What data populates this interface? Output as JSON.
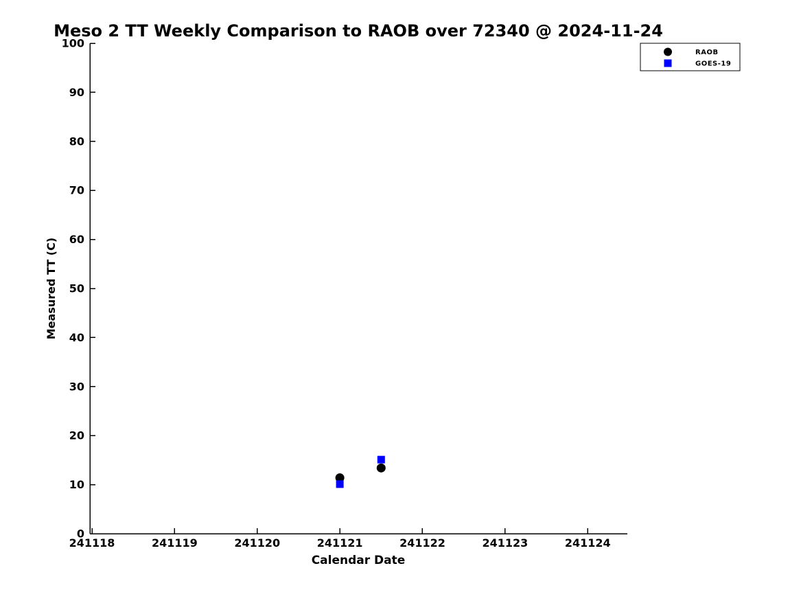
{
  "chart_data": {
    "type": "scatter",
    "title": "Meso 2 TT Weekly Comparison to RAOB over 72340 @ 2024-11-24",
    "xlabel": "Calendar Date",
    "ylabel": "Measured TT (C)",
    "x_tick_labels": [
      "241118",
      "241119",
      "241120",
      "241121",
      "241122",
      "241123",
      "241124"
    ],
    "x_tick_values": [
      241118,
      241119,
      241120,
      241121,
      241122,
      241123,
      241124
    ],
    "y_ticks": [
      0,
      10,
      20,
      30,
      40,
      50,
      60,
      70,
      80,
      90,
      100
    ],
    "xlim": [
      241117.975,
      241124.48
    ],
    "ylim": [
      0,
      100
    ],
    "grid": false,
    "box": false,
    "legend": {
      "position": "top-right",
      "entries": [
        {
          "label": "RAOB",
          "marker": "circle",
          "color": "#000000"
        },
        {
          "label": "GOES-19",
          "marker": "square",
          "color": "#0000ff"
        }
      ]
    },
    "series": [
      {
        "name": "RAOB",
        "marker": "circle",
        "color": "#000000",
        "points": [
          {
            "x": 241121.0,
            "y": 11.4
          },
          {
            "x": 241121.5,
            "y": 13.4
          }
        ]
      },
      {
        "name": "GOES-19",
        "marker": "square",
        "color": "#0000ff",
        "points": [
          {
            "x": 241121.0,
            "y": 10.1
          },
          {
            "x": 241121.5,
            "y": 15.1
          }
        ]
      }
    ]
  },
  "colors": {
    "background": "#ffffff",
    "axis": "#000000",
    "text": "#000000",
    "raob": "#000000",
    "goes19": "#0000ff"
  }
}
